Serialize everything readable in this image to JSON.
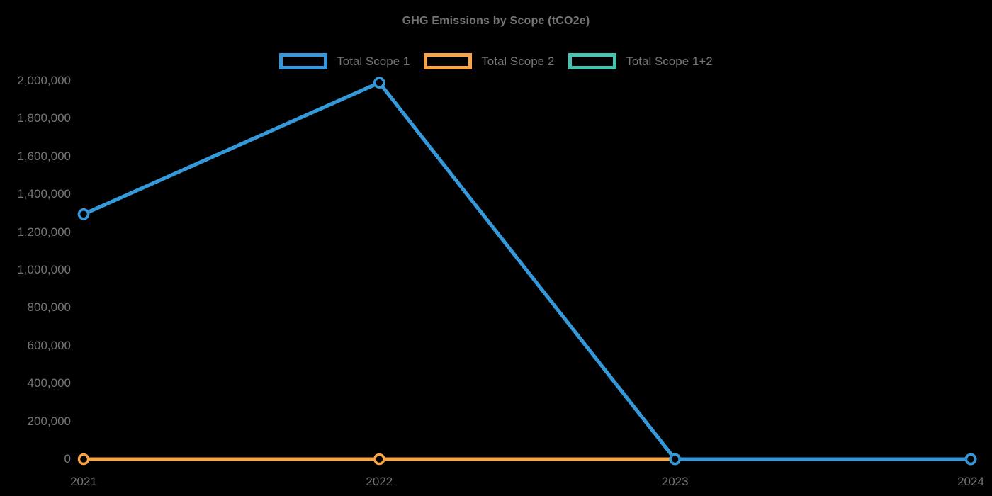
{
  "chart_data": {
    "type": "line",
    "title": "GHG Emissions by Scope (tCO2e)",
    "categories": [
      "2021",
      "2022",
      "2023",
      "2024"
    ],
    "series": [
      {
        "name": "Total Scope 1",
        "color": "#3598DB",
        "values": [
          1295000,
          1990000,
          0,
          0
        ]
      },
      {
        "name": "Total Scope 2",
        "color": "#F8A448",
        "values": [
          0,
          0,
          0,
          0
        ]
      },
      {
        "name": "Total Scope 1+2",
        "color": "#48C3B0",
        "values": [
          1295000,
          1990000,
          0,
          0
        ]
      }
    ],
    "ylim": [
      0,
      2000000
    ],
    "ytick_step": 200000,
    "y_tick_labels": [
      "0",
      "200,000",
      "400,000",
      "600,000",
      "800,000",
      "1,000,000",
      "1,200,000",
      "1,400,000",
      "1,600,000",
      "1,800,000",
      "2,000,000"
    ],
    "x_tick_labels": [
      "2021",
      "2022",
      "2023",
      "2024"
    ],
    "legend_position": "top",
    "grid": false,
    "marker_style": "hollow-circle",
    "text_color": "#757575",
    "background_color": "#000000"
  }
}
